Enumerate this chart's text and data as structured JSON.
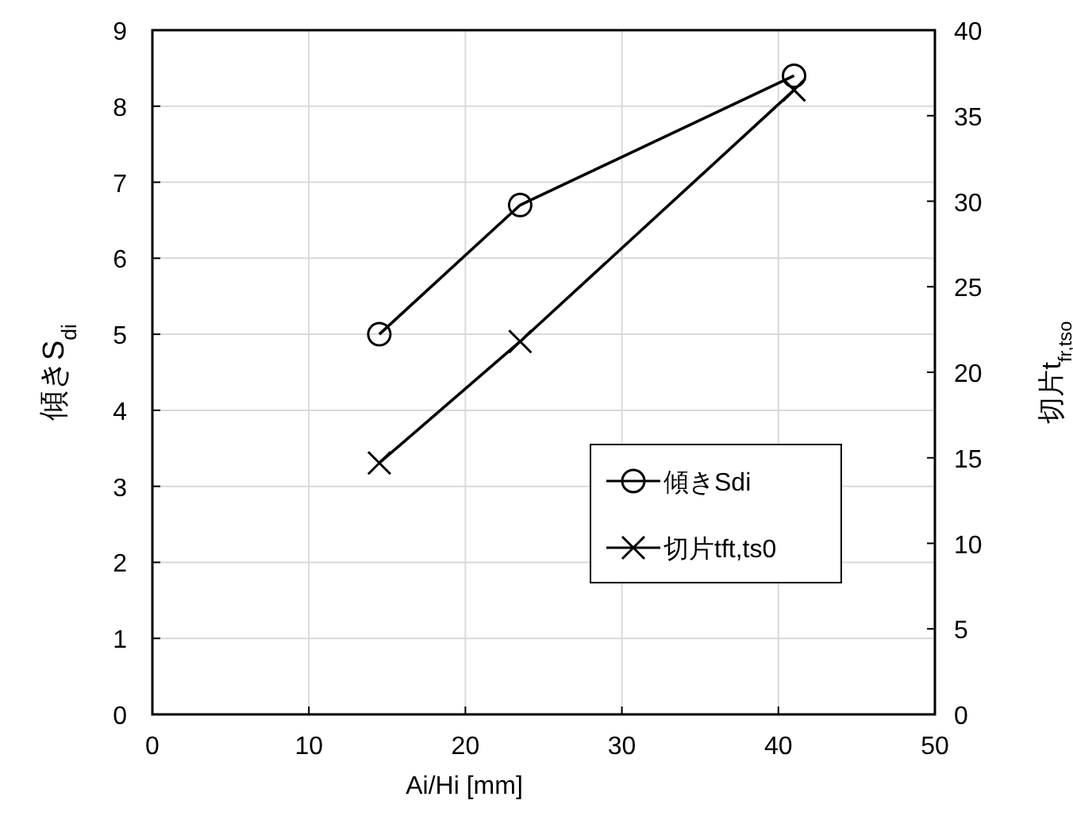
{
  "chart_data": {
    "type": "line",
    "xlabel": "Ai/Hi [mm]",
    "ylabel": "傾きS$_{di}$",
    "y2label": "切片t$_{fr,tso}$",
    "xlim": [
      0,
      50
    ],
    "xticks": [
      0,
      10,
      20,
      30,
      40,
      50
    ],
    "ylim": [
      0,
      9
    ],
    "yticks": [
      0,
      1,
      2,
      3,
      4,
      5,
      6,
      7,
      8,
      9
    ],
    "y2lim": [
      0,
      40
    ],
    "y2ticks": [
      0,
      5,
      10,
      15,
      20,
      25,
      30,
      35,
      40
    ],
    "grid": true,
    "legend": "bottom right",
    "series": [
      {
        "name": "傾きSdi",
        "color": "#000000",
        "marker": "circle",
        "x": [
          14.5,
          23.5,
          41
        ],
        "values": [
          5.0,
          6.7,
          8.4
        ]
      },
      {
        "name": "切片tft,ts0",
        "color": "#000000",
        "marker": "cross",
        "axis": "y2",
        "x": [
          14.5,
          23.5,
          41
        ],
        "values": [
          14.7,
          21.8,
          36.5
        ]
      }
    ]
  }
}
